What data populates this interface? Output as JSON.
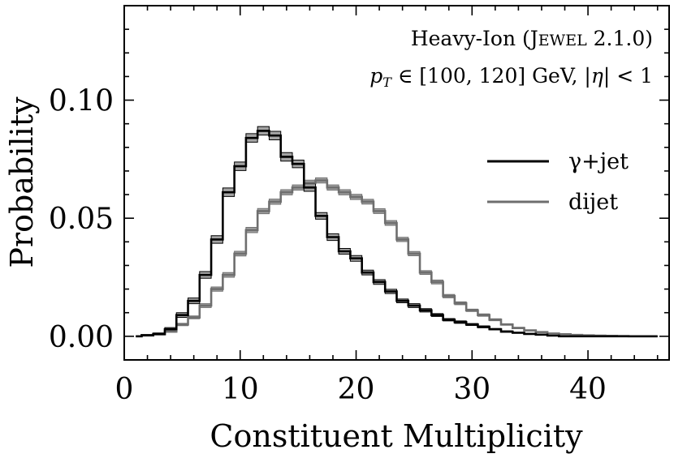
{
  "chart_data": {
    "type": "line",
    "drawstyle": "steps-mid",
    "title": "",
    "annotations": [
      "Heavy-Ion (Jewel 2.1.0)",
      "pT ∈ [100, 120] GeV, |η| < 1"
    ],
    "annotation_parts": {
      "l1_prefix": "Heavy-Ion (",
      "l1_sc_big1": "J",
      "l1_sc_small": "EWEL",
      "l1_suffix": " 2.1.0)",
      "l2_p": "p",
      "l2_sub": "T",
      "l2_rest1": " ∈ [100, 120] GeV, |",
      "l2_eta": "η",
      "l2_rest2": "| < 1"
    },
    "xlabel": "Constituent Multiplicity",
    "ylabel": "Probability",
    "xlim": [
      0,
      47
    ],
    "ylim": [
      -0.01,
      0.14
    ],
    "xticks": [
      0,
      10,
      20,
      30,
      40
    ],
    "xtick_labels": [
      "0",
      "10",
      "20",
      "30",
      "40"
    ],
    "yticks": [
      0.0,
      0.05,
      0.1
    ],
    "ytick_labels": [
      "0.00",
      "0.05",
      "0.10"
    ],
    "legend_position": "right",
    "x": [
      1,
      2,
      3,
      4,
      5,
      6,
      7,
      8,
      9,
      10,
      11,
      12,
      13,
      14,
      15,
      16,
      17,
      18,
      19,
      20,
      21,
      22,
      23,
      24,
      25,
      26,
      27,
      28,
      29,
      30,
      31,
      32,
      33,
      34,
      35,
      36,
      37,
      38,
      39,
      40,
      41,
      42,
      43,
      44,
      45,
      46
    ],
    "series": [
      {
        "name": "γ+jet",
        "color": "#000000",
        "band_color": "#9a9a9a",
        "values": [
          0.0,
          0.0005,
          0.001,
          0.003,
          0.009,
          0.015,
          0.026,
          0.041,
          0.061,
          0.072,
          0.084,
          0.087,
          0.085,
          0.076,
          0.073,
          0.063,
          0.051,
          0.042,
          0.036,
          0.033,
          0.027,
          0.023,
          0.019,
          0.015,
          0.013,
          0.011,
          0.009,
          0.007,
          0.006,
          0.005,
          0.004,
          0.003,
          0.002,
          0.0015,
          0.001,
          0.0007,
          0.0003,
          0.0,
          0.0,
          0.0,
          0.0,
          0.0,
          0.0,
          0.0,
          0.0,
          0.0
        ],
        "errors": [
          0.0,
          0.0002,
          0.0004,
          0.0007,
          0.001,
          0.0012,
          0.0014,
          0.0016,
          0.0018,
          0.0018,
          0.0018,
          0.0018,
          0.0018,
          0.0018,
          0.0016,
          0.0016,
          0.0014,
          0.0014,
          0.0012,
          0.0012,
          0.001,
          0.001,
          0.0009,
          0.0008,
          0.0008,
          0.0007,
          0.0006,
          0.0005,
          0.0005,
          0.0004,
          0.0004,
          0.0003,
          0.0003,
          0.0002,
          0.0002,
          0.0001,
          0.0001,
          0.0,
          0.0,
          0.0,
          0.0,
          0.0,
          0.0,
          0.0,
          0.0,
          0.0
        ]
      },
      {
        "name": "dijet",
        "color": "#6e6e6e",
        "band_color": "#9a9a9a",
        "values": [
          0.0,
          0.0003,
          0.0008,
          0.002,
          0.005,
          0.008,
          0.013,
          0.02,
          0.026,
          0.035,
          0.045,
          0.053,
          0.057,
          0.061,
          0.063,
          0.065,
          0.066,
          0.063,
          0.061,
          0.059,
          0.057,
          0.053,
          0.048,
          0.041,
          0.035,
          0.027,
          0.023,
          0.017,
          0.014,
          0.011,
          0.009,
          0.007,
          0.005,
          0.0035,
          0.0025,
          0.0018,
          0.0012,
          0.0009,
          0.0006,
          0.0004,
          0.0003,
          0.0002,
          0.0001,
          0.0,
          0.0,
          0.0
        ],
        "errors": [
          0.0,
          0.0001,
          0.0002,
          0.0003,
          0.0005,
          0.0006,
          0.0008,
          0.0009,
          0.001,
          0.001,
          0.0011,
          0.0011,
          0.0011,
          0.0011,
          0.0011,
          0.0011,
          0.0011,
          0.0011,
          0.0011,
          0.0011,
          0.001,
          0.001,
          0.001,
          0.0009,
          0.0009,
          0.0008,
          0.0008,
          0.0007,
          0.0006,
          0.0005,
          0.0005,
          0.0004,
          0.0003,
          0.0003,
          0.0002,
          0.0002,
          0.0001,
          0.0001,
          0.0001,
          0.0,
          0.0,
          0.0,
          0.0,
          0.0,
          0.0,
          0.0
        ]
      }
    ]
  }
}
